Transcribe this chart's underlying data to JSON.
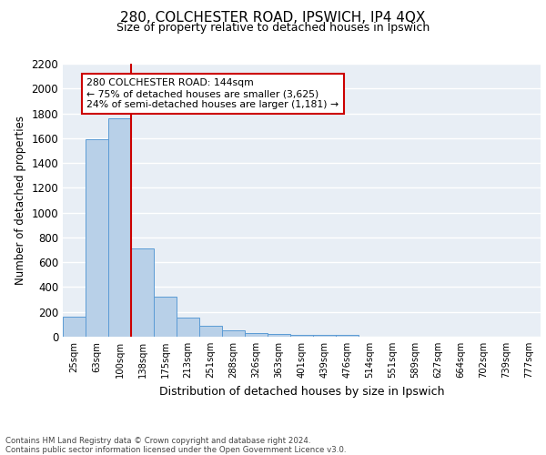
{
  "title1": "280, COLCHESTER ROAD, IPSWICH, IP4 4QX",
  "title2": "Size of property relative to detached houses in Ipswich",
  "xlabel": "Distribution of detached houses by size in Ipswich",
  "ylabel": "Number of detached properties",
  "bar_labels": [
    "25sqm",
    "63sqm",
    "100sqm",
    "138sqm",
    "175sqm",
    "213sqm",
    "251sqm",
    "288sqm",
    "326sqm",
    "363sqm",
    "401sqm",
    "439sqm",
    "476sqm",
    "514sqm",
    "551sqm",
    "589sqm",
    "627sqm",
    "664sqm",
    "702sqm",
    "739sqm",
    "777sqm"
  ],
  "bar_values": [
    160,
    1590,
    1760,
    710,
    320,
    155,
    85,
    50,
    28,
    20,
    18,
    15,
    18,
    0,
    0,
    0,
    0,
    0,
    0,
    0,
    0
  ],
  "bar_color": "#b8d0e8",
  "bar_edge_color": "#5b9bd5",
  "vline_x_index": 3,
  "vline_color": "#cc0000",
  "annotation_text": "280 COLCHESTER ROAD: 144sqm\n← 75% of detached houses are smaller (3,625)\n24% of semi-detached houses are larger (1,181) →",
  "annotation_box_color": "#ffffff",
  "annotation_box_edge": "#cc0000",
  "ylim": [
    0,
    2200
  ],
  "yticks": [
    0,
    200,
    400,
    600,
    800,
    1000,
    1200,
    1400,
    1600,
    1800,
    2000,
    2200
  ],
  "footer1": "Contains HM Land Registry data © Crown copyright and database right 2024.",
  "footer2": "Contains public sector information licensed under the Open Government Licence v3.0.",
  "bg_color": "#e8eef5",
  "grid_color": "#ffffff"
}
